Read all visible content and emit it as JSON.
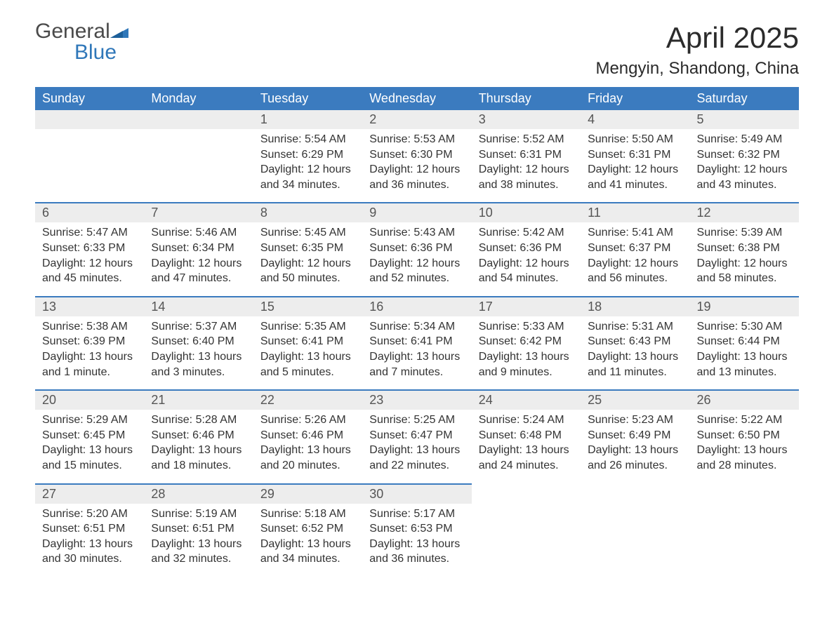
{
  "brand": {
    "general": "General",
    "blue": "Blue",
    "accent_color": "#2f77b9"
  },
  "title": "April 2025",
  "location": "Mengyin, Shandong, China",
  "colors": {
    "header_bg": "#3b7bbf",
    "header_text": "#ffffff",
    "daynum_bg": "#ededed",
    "rule": "#3b7bbf",
    "body_text": "#333333"
  },
  "day_names": [
    "Sunday",
    "Monday",
    "Tuesday",
    "Wednesday",
    "Thursday",
    "Friday",
    "Saturday"
  ],
  "weeks": [
    [
      null,
      null,
      {
        "n": "1",
        "sr": "Sunrise: 5:54 AM",
        "ss": "Sunset: 6:29 PM",
        "dl": "Daylight: 12 hours and 34 minutes."
      },
      {
        "n": "2",
        "sr": "Sunrise: 5:53 AM",
        "ss": "Sunset: 6:30 PM",
        "dl": "Daylight: 12 hours and 36 minutes."
      },
      {
        "n": "3",
        "sr": "Sunrise: 5:52 AM",
        "ss": "Sunset: 6:31 PM",
        "dl": "Daylight: 12 hours and 38 minutes."
      },
      {
        "n": "4",
        "sr": "Sunrise: 5:50 AM",
        "ss": "Sunset: 6:31 PM",
        "dl": "Daylight: 12 hours and 41 minutes."
      },
      {
        "n": "5",
        "sr": "Sunrise: 5:49 AM",
        "ss": "Sunset: 6:32 PM",
        "dl": "Daylight: 12 hours and 43 minutes."
      }
    ],
    [
      {
        "n": "6",
        "sr": "Sunrise: 5:47 AM",
        "ss": "Sunset: 6:33 PM",
        "dl": "Daylight: 12 hours and 45 minutes."
      },
      {
        "n": "7",
        "sr": "Sunrise: 5:46 AM",
        "ss": "Sunset: 6:34 PM",
        "dl": "Daylight: 12 hours and 47 minutes."
      },
      {
        "n": "8",
        "sr": "Sunrise: 5:45 AM",
        "ss": "Sunset: 6:35 PM",
        "dl": "Daylight: 12 hours and 50 minutes."
      },
      {
        "n": "9",
        "sr": "Sunrise: 5:43 AM",
        "ss": "Sunset: 6:36 PM",
        "dl": "Daylight: 12 hours and 52 minutes."
      },
      {
        "n": "10",
        "sr": "Sunrise: 5:42 AM",
        "ss": "Sunset: 6:36 PM",
        "dl": "Daylight: 12 hours and 54 minutes."
      },
      {
        "n": "11",
        "sr": "Sunrise: 5:41 AM",
        "ss": "Sunset: 6:37 PM",
        "dl": "Daylight: 12 hours and 56 minutes."
      },
      {
        "n": "12",
        "sr": "Sunrise: 5:39 AM",
        "ss": "Sunset: 6:38 PM",
        "dl": "Daylight: 12 hours and 58 minutes."
      }
    ],
    [
      {
        "n": "13",
        "sr": "Sunrise: 5:38 AM",
        "ss": "Sunset: 6:39 PM",
        "dl": "Daylight: 13 hours and 1 minute."
      },
      {
        "n": "14",
        "sr": "Sunrise: 5:37 AM",
        "ss": "Sunset: 6:40 PM",
        "dl": "Daylight: 13 hours and 3 minutes."
      },
      {
        "n": "15",
        "sr": "Sunrise: 5:35 AM",
        "ss": "Sunset: 6:41 PM",
        "dl": "Daylight: 13 hours and 5 minutes."
      },
      {
        "n": "16",
        "sr": "Sunrise: 5:34 AM",
        "ss": "Sunset: 6:41 PM",
        "dl": "Daylight: 13 hours and 7 minutes."
      },
      {
        "n": "17",
        "sr": "Sunrise: 5:33 AM",
        "ss": "Sunset: 6:42 PM",
        "dl": "Daylight: 13 hours and 9 minutes."
      },
      {
        "n": "18",
        "sr": "Sunrise: 5:31 AM",
        "ss": "Sunset: 6:43 PM",
        "dl": "Daylight: 13 hours and 11 minutes."
      },
      {
        "n": "19",
        "sr": "Sunrise: 5:30 AM",
        "ss": "Sunset: 6:44 PM",
        "dl": "Daylight: 13 hours and 13 minutes."
      }
    ],
    [
      {
        "n": "20",
        "sr": "Sunrise: 5:29 AM",
        "ss": "Sunset: 6:45 PM",
        "dl": "Daylight: 13 hours and 15 minutes."
      },
      {
        "n": "21",
        "sr": "Sunrise: 5:28 AM",
        "ss": "Sunset: 6:46 PM",
        "dl": "Daylight: 13 hours and 18 minutes."
      },
      {
        "n": "22",
        "sr": "Sunrise: 5:26 AM",
        "ss": "Sunset: 6:46 PM",
        "dl": "Daylight: 13 hours and 20 minutes."
      },
      {
        "n": "23",
        "sr": "Sunrise: 5:25 AM",
        "ss": "Sunset: 6:47 PM",
        "dl": "Daylight: 13 hours and 22 minutes."
      },
      {
        "n": "24",
        "sr": "Sunrise: 5:24 AM",
        "ss": "Sunset: 6:48 PM",
        "dl": "Daylight: 13 hours and 24 minutes."
      },
      {
        "n": "25",
        "sr": "Sunrise: 5:23 AM",
        "ss": "Sunset: 6:49 PM",
        "dl": "Daylight: 13 hours and 26 minutes."
      },
      {
        "n": "26",
        "sr": "Sunrise: 5:22 AM",
        "ss": "Sunset: 6:50 PM",
        "dl": "Daylight: 13 hours and 28 minutes."
      }
    ],
    [
      {
        "n": "27",
        "sr": "Sunrise: 5:20 AM",
        "ss": "Sunset: 6:51 PM",
        "dl": "Daylight: 13 hours and 30 minutes."
      },
      {
        "n": "28",
        "sr": "Sunrise: 5:19 AM",
        "ss": "Sunset: 6:51 PM",
        "dl": "Daylight: 13 hours and 32 minutes."
      },
      {
        "n": "29",
        "sr": "Sunrise: 5:18 AM",
        "ss": "Sunset: 6:52 PM",
        "dl": "Daylight: 13 hours and 34 minutes."
      },
      {
        "n": "30",
        "sr": "Sunrise: 5:17 AM",
        "ss": "Sunset: 6:53 PM",
        "dl": "Daylight: 13 hours and 36 minutes."
      },
      null,
      null,
      null
    ]
  ]
}
